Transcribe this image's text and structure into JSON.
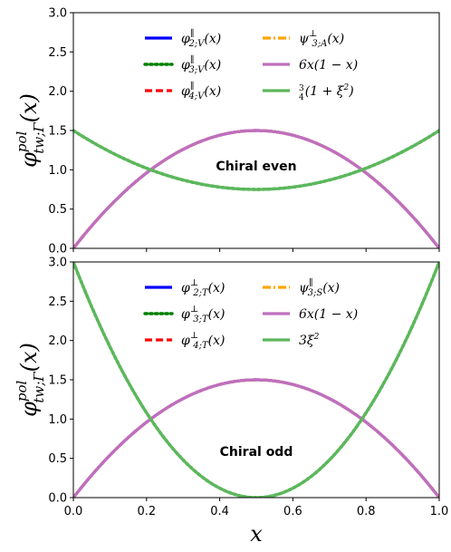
{
  "xlabel": "x",
  "chart_data": [
    {
      "type": "line",
      "ylabel": {
        "base": "φ",
        "sup": "pol",
        "sub": "tw;Γ",
        "tail": "(x)"
      },
      "annotation": "Chiral even",
      "xlim": [
        0,
        1
      ],
      "ylim": [
        0,
        3
      ],
      "xticks": [
        "0.0",
        "0.2",
        "0.4",
        "0.6",
        "0.8",
        "1.0"
      ],
      "yticks": [
        "0.0",
        "0.5",
        "1.0",
        "1.5",
        "2.0",
        "2.5",
        "3.0"
      ],
      "grid": false,
      "legend_placement": "upper-center",
      "series": [
        {
          "name": "φ2;V∥(x)",
          "label": {
            "base": "φ",
            "sup": "∥",
            "sub": "2;V",
            "tail": "(x)"
          },
          "func": "6x(1-x)",
          "color": "#0000ff",
          "style": "solid",
          "order": 0
        },
        {
          "name": "φ3;V∥(x)",
          "label": {
            "base": "φ",
            "sup": "∥",
            "sub": "3;V",
            "tail": "(x)"
          },
          "func": "3/4(1+xi^2)",
          "color": "#008000",
          "style": "dotted",
          "order": 1
        },
        {
          "name": "φ4;V∥(x)",
          "label": {
            "base": "φ",
            "sup": "∥",
            "sub": "4;V",
            "tail": "(x)"
          },
          "func": "6x(1-x)",
          "color": "#ff0000",
          "style": "dashed",
          "order": 2
        },
        {
          "name": "ψ3;A⊥(x)",
          "label": {
            "base": "ψ",
            "sup": "⊥",
            "sub": "3;A",
            "tail": "(x)"
          },
          "func": "6x(1-x)",
          "color": "#ffa500",
          "style": "dashdot",
          "order": 3
        },
        {
          "name": "6x(1 − x)",
          "label": {
            "base": "6x(1 − x)"
          },
          "func": "6x(1-x)",
          "color": "#bf6fbf",
          "style": "solid",
          "order": 4
        },
        {
          "name": "3/4(1 + ξ²)",
          "label": {
            "frac_num": "3",
            "frac_den": "4",
            "base": "(1 + ξ",
            "sup": "2",
            "tail": ")"
          },
          "func": "3/4(1+xi^2)",
          "color": "#5cb85c",
          "style": "solid",
          "order": 5
        }
      ]
    },
    {
      "type": "line",
      "ylabel": {
        "base": "φ",
        "sup": "pol",
        "sub": "tw;Γ",
        "tail": "(x)"
      },
      "annotation": "Chiral odd",
      "xlim": [
        0,
        1
      ],
      "ylim": [
        0,
        3
      ],
      "xticks": [
        "0.0",
        "0.2",
        "0.4",
        "0.6",
        "0.8",
        "1.0"
      ],
      "yticks": [
        "0.0",
        "0.5",
        "1.0",
        "1.5",
        "2.0",
        "2.5",
        "3.0"
      ],
      "grid": false,
      "legend_placement": "upper-center",
      "series": [
        {
          "name": "φ2;T⊥(x)",
          "label": {
            "base": "φ",
            "sup": "⊥",
            "sub": "2;T",
            "tail": "(x)"
          },
          "func": "6x(1-x)",
          "color": "#0000ff",
          "style": "solid",
          "order": 0
        },
        {
          "name": "φ3;T⊥(x)",
          "label": {
            "base": "φ",
            "sup": "⊥",
            "sub": "3;T",
            "tail": "(x)"
          },
          "func": "3xi^2",
          "color": "#008000",
          "style": "dotted",
          "order": 1
        },
        {
          "name": "φ4;T⊥(x)",
          "label": {
            "base": "φ",
            "sup": "⊥",
            "sub": "4;T",
            "tail": "(x)"
          },
          "func": "6x(1-x)",
          "color": "#ff0000",
          "style": "dashed",
          "order": 2
        },
        {
          "name": "ψ3;S∥(x)",
          "label": {
            "base": "ψ",
            "sup": "∥",
            "sub": "3;S",
            "tail": "(x)"
          },
          "func": "6x(1-x)",
          "color": "#ffa500",
          "style": "dashdot",
          "order": 3
        },
        {
          "name": "6x(1 − x)",
          "label": {
            "base": "6x(1 − x)"
          },
          "func": "6x(1-x)",
          "color": "#bf6fbf",
          "style": "solid",
          "order": 4
        },
        {
          "name": "3ξ²",
          "label": {
            "base": "3ξ",
            "sup": "2"
          },
          "func": "3xi^2",
          "color": "#5cb85c",
          "style": "solid",
          "order": 5
        }
      ]
    }
  ]
}
